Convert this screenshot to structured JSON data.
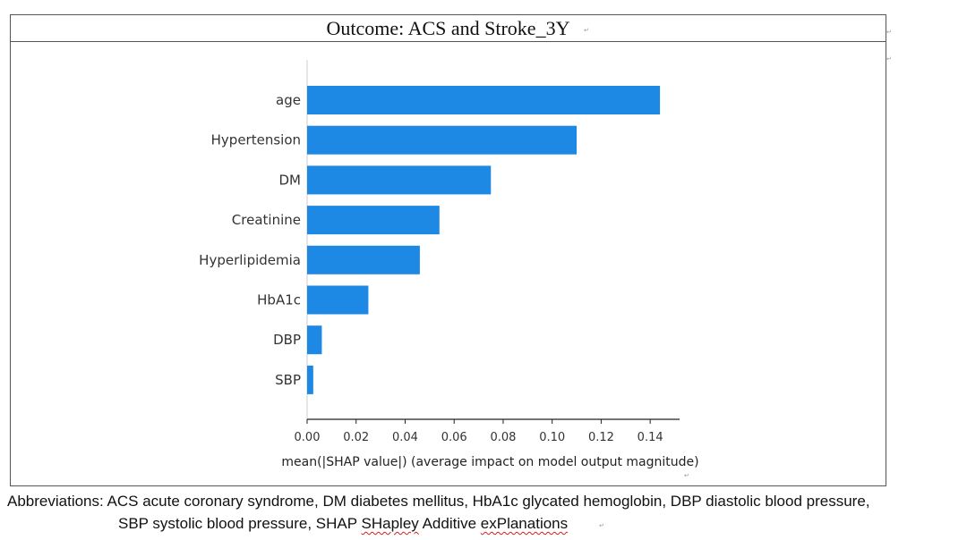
{
  "chart_data": {
    "type": "bar",
    "orientation": "horizontal",
    "title": "Outcome: ACS and Stroke_3Y",
    "categories": [
      "age",
      "Hypertension",
      "DM",
      "Creatinine",
      "Hyperlipidemia",
      "HbA1c",
      "DBP",
      "SBP"
    ],
    "values": [
      0.144,
      0.11,
      0.075,
      0.054,
      0.046,
      0.025,
      0.006,
      0.0025
    ],
    "xlabel": "mean(|SHAP value|) (average impact on model output magnitude)",
    "ylabel": "",
    "xlim": [
      0,
      0.152
    ],
    "xticks": [
      0.0,
      0.02,
      0.04,
      0.06,
      0.08,
      0.1,
      0.12,
      0.14
    ],
    "xtick_labels": [
      "0.00",
      "0.02",
      "0.04",
      "0.06",
      "0.08",
      "0.10",
      "0.12",
      "0.14"
    ],
    "bar_color": "#1e88e5",
    "grid": false
  },
  "caption": {
    "line1": "Abbreviations: ACS acute coronary syndrome, DM diabetes mellitus, HbA1c glycated hemoglobin, DBP diastolic blood pressure,",
    "line2_prefix": "SBP systolic blood pressure, SHAP ",
    "line2_word1": "SHapley",
    "line2_middle": " Additive ",
    "line2_word2": "exPlanations"
  }
}
